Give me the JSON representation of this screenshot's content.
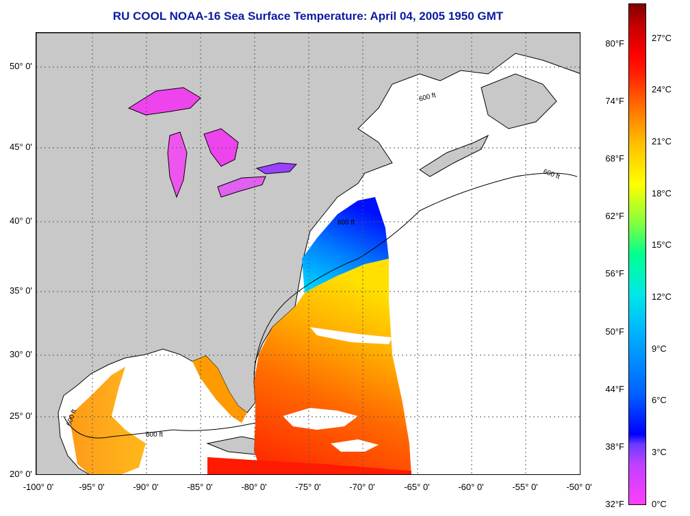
{
  "title": "RU COOL  NOAA-16  Sea Surface Temperature:  April 04, 2005 1950 GMT",
  "map": {
    "lat_labels": [
      "50° 0'",
      "45° 0'",
      "40° 0'",
      "35° 0'",
      "30° 0'",
      "25° 0'",
      "20° 0'"
    ],
    "lon_labels": [
      "-100° 0'",
      "-95° 0'",
      "-90° 0'",
      "-85° 0'",
      "-80° 0'",
      "-75° 0'",
      "-70° 0'",
      "-65° 0'",
      "-60° 0'",
      "-55° 0'",
      "-50° 0'"
    ],
    "contour_label": "600 ft",
    "colors": {
      "land": "#c8c8c8",
      "ocean_no_data": "#ffffff",
      "grid": "#555555"
    }
  },
  "colorbar": {
    "fahrenheit_labels": [
      "80°F",
      "74°F",
      "68°F",
      "62°F",
      "56°F",
      "50°F",
      "44°F",
      "38°F",
      "32°F"
    ],
    "celsius_labels": [
      "27°C",
      "24°C",
      "21°C",
      "18°C",
      "15°C",
      "12°C",
      "9°C",
      "6°C",
      "3°C",
      "0°C"
    ]
  }
}
